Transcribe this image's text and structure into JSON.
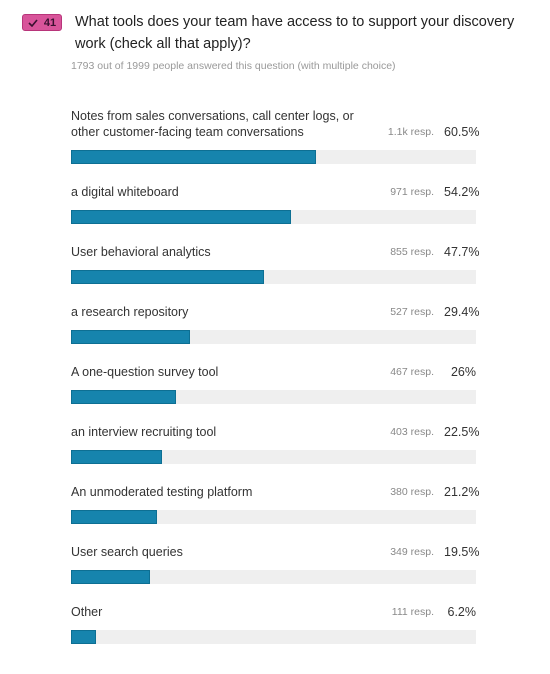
{
  "chart_data": {
    "type": "bar",
    "orientation": "horizontal",
    "badge": "41",
    "title": "What tools does your team have access to to support your discovery work (check all that apply)?",
    "subtitle": "1793 out of 1999 people answered this question (with multiple choice)",
    "categories": [
      "Notes from sales conversations, call center logs, or other customer-facing team conversations",
      "a digital whiteboard",
      "User behavioral analytics",
      "a research repository",
      "A one-question survey tool",
      "an interview recruiting tool",
      "An unmoderated testing platform",
      "User search queries",
      "Other"
    ],
    "responses": [
      "1.1k resp.",
      "971 resp.",
      "855 resp.",
      "527 resp.",
      "467 resp.",
      "403 resp.",
      "380 resp.",
      "349 resp.",
      "111 resp."
    ],
    "values": [
      60.5,
      54.2,
      47.7,
      29.4,
      26,
      22.5,
      21.2,
      19.5,
      6.2
    ],
    "value_labels": [
      "60.5%",
      "54.2%",
      "47.7%",
      "29.4%",
      "26%",
      "22.5%",
      "21.2%",
      "19.5%",
      "6.2%"
    ],
    "color": "#1684ad",
    "xlim": [
      0,
      100
    ]
  }
}
